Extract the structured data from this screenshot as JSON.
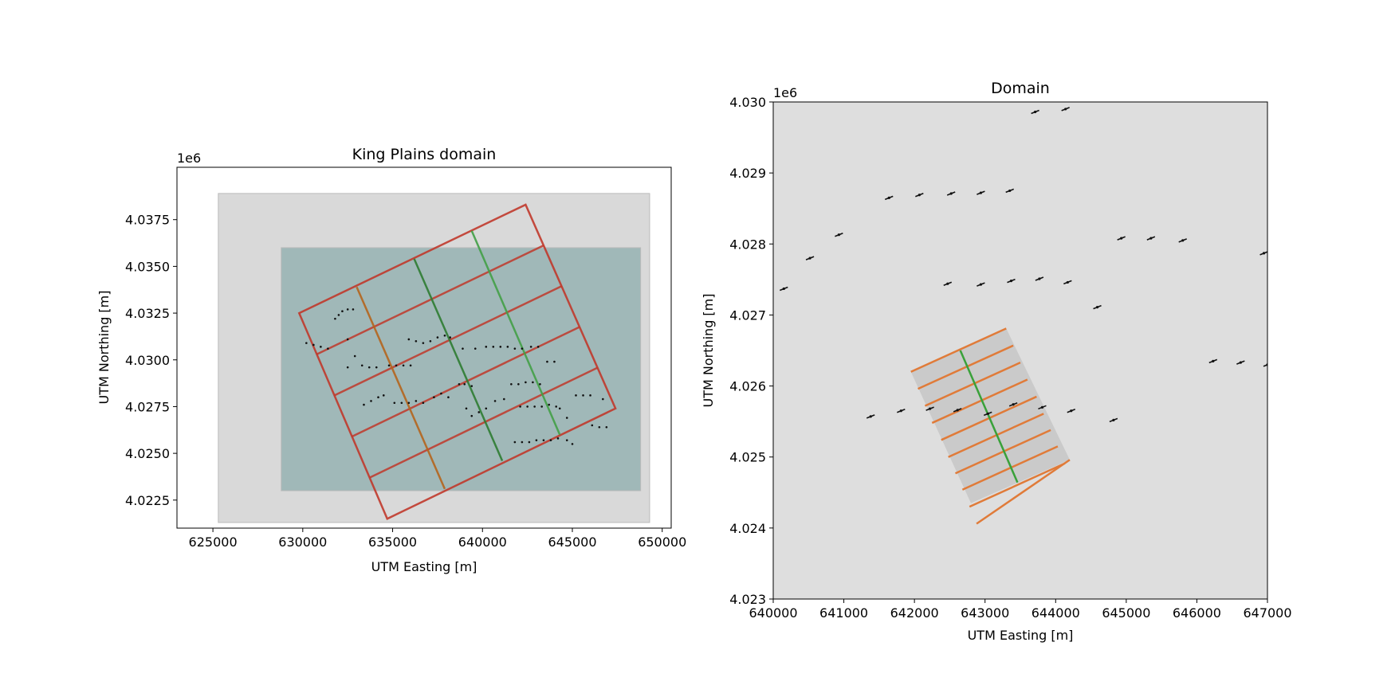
{
  "chart_data": [
    {
      "type": "scatter",
      "title": "King Plains domain",
      "xlabel": "UTM Easting [m]",
      "ylabel": "UTM Northing [m]",
      "offset_label": "1e6",
      "xlim": [
        623000,
        650500
      ],
      "ylim": [
        4021000,
        4040300
      ],
      "xticks": [
        625000,
        630000,
        635000,
        640000,
        645000,
        650000
      ],
      "xtick_labels": [
        "625000",
        "630000",
        "635000",
        "640000",
        "645000",
        "650000"
      ],
      "yticks": [
        4022500,
        4025000,
        4027500,
        4030000,
        4032500,
        4035000,
        4037500
      ],
      "ytick_labels": [
        "4.0225",
        "4.0250",
        "4.0275",
        "4.0300",
        "4.0325",
        "4.0350",
        "4.0375"
      ],
      "regions": [
        {
          "name": "outer-domain",
          "color": "#d9d9d9",
          "x": [
            625300,
            649300
          ],
          "y": [
            4021300,
            4038900
          ]
        },
        {
          "name": "inner-grid",
          "color": "#a0b8b8",
          "x": [
            628800,
            648800
          ],
          "y": [
            4023000,
            4036000
          ]
        }
      ],
      "turbines": [
        [
          631800,
          4032200
        ],
        [
          632000,
          4032400
        ],
        [
          632200,
          4032600
        ],
        [
          632500,
          4032700
        ],
        [
          632800,
          4032700
        ],
        [
          630200,
          4030900
        ],
        [
          630600,
          4030800
        ],
        [
          631000,
          4030700
        ],
        [
          631400,
          4030600
        ],
        [
          632500,
          4031100
        ],
        [
          632900,
          4030200
        ],
        [
          632500,
          4029600
        ],
        [
          633300,
          4029700
        ],
        [
          633700,
          4029600
        ],
        [
          634100,
          4029600
        ],
        [
          634800,
          4029700
        ],
        [
          635200,
          4029700
        ],
        [
          635600,
          4029700
        ],
        [
          636000,
          4029700
        ],
        [
          635900,
          4031100
        ],
        [
          636300,
          4031000
        ],
        [
          636700,
          4030900
        ],
        [
          637100,
          4031000
        ],
        [
          637500,
          4031200
        ],
        [
          637900,
          4031300
        ],
        [
          638200,
          4031200
        ],
        [
          638900,
          4030600
        ],
        [
          639600,
          4030600
        ],
        [
          640200,
          4030700
        ],
        [
          640600,
          4030700
        ],
        [
          641000,
          4030700
        ],
        [
          641400,
          4030700
        ],
        [
          641800,
          4030600
        ],
        [
          642200,
          4030600
        ],
        [
          642700,
          4030700
        ],
        [
          643100,
          4030700
        ],
        [
          643600,
          4029900
        ],
        [
          644000,
          4029900
        ],
        [
          638700,
          4028700
        ],
        [
          639000,
          4028700
        ],
        [
          639400,
          4028600
        ],
        [
          641600,
          4028700
        ],
        [
          642000,
          4028700
        ],
        [
          642400,
          4028800
        ],
        [
          642800,
          4028800
        ],
        [
          643200,
          4028700
        ],
        [
          633400,
          4027600
        ],
        [
          633800,
          4027800
        ],
        [
          634200,
          4028000
        ],
        [
          634500,
          4028100
        ],
        [
          635100,
          4027700
        ],
        [
          635500,
          4027700
        ],
        [
          635900,
          4027700
        ],
        [
          636300,
          4027800
        ],
        [
          636700,
          4027700
        ],
        [
          637300,
          4028000
        ],
        [
          637700,
          4028200
        ],
        [
          638100,
          4028000
        ],
        [
          639100,
          4027400
        ],
        [
          639400,
          4027000
        ],
        [
          639800,
          4027200
        ],
        [
          640200,
          4027400
        ],
        [
          640700,
          4027800
        ],
        [
          641200,
          4027900
        ],
        [
          642100,
          4027500
        ],
        [
          642500,
          4027500
        ],
        [
          642900,
          4027500
        ],
        [
          643300,
          4027500
        ],
        [
          643700,
          4027600
        ],
        [
          644100,
          4027500
        ],
        [
          644300,
          4027400
        ],
        [
          644700,
          4026900
        ],
        [
          645200,
          4028100
        ],
        [
          645600,
          4028100
        ],
        [
          646000,
          4028100
        ],
        [
          646700,
          4027900
        ],
        [
          646100,
          4026500
        ],
        [
          646500,
          4026400
        ],
        [
          646900,
          4026400
        ],
        [
          641800,
          4025600
        ],
        [
          642200,
          4025600
        ],
        [
          642600,
          4025600
        ],
        [
          643000,
          4025700
        ],
        [
          643400,
          4025700
        ],
        [
          643800,
          4025700
        ],
        [
          644200,
          4025800
        ],
        [
          644700,
          4025700
        ],
        [
          645000,
          4025500
        ]
      ],
      "nests": [
        {
          "color": "#c0392b",
          "corners": [
            [
              629800,
              4032500
            ],
            [
              642400,
              4038300
            ],
            [
              647400,
              4027400
            ],
            [
              634700,
              4021500
            ]
          ]
        },
        {
          "color": "#b5651d",
          "corners": [
            [
              633000,
              4033900
            ],
            [
              637900,
              4023100
            ]
          ]
        },
        {
          "color": "#2e7d32",
          "corners": [
            [
              636200,
              4035400
            ],
            [
              641100,
              4024600
            ]
          ]
        },
        {
          "color": "#43a047",
          "corners": [
            [
              639400,
              4036900
            ],
            [
              644300,
              4026000
            ]
          ]
        }
      ]
    },
    {
      "type": "scatter",
      "title": "Domain",
      "xlabel": "UTM Easting [m]",
      "ylabel": "UTM Northing [m]",
      "offset_label": "1e6",
      "xlim": [
        640000,
        647000
      ],
      "ylim": [
        4023000,
        4030000
      ],
      "xticks": [
        640000,
        641000,
        642000,
        643000,
        644000,
        645000,
        646000,
        647000
      ],
      "xtick_labels": [
        "640000",
        "641000",
        "642000",
        "643000",
        "644000",
        "645000",
        "646000",
        "647000"
      ],
      "yticks": [
        4023000,
        4024000,
        4025000,
        4026000,
        4027000,
        4028000,
        4029000,
        4030000
      ],
      "ytick_labels": [
        "4.023",
        "4.024",
        "4.025",
        "4.026",
        "4.027",
        "4.028",
        "4.029",
        "4.030"
      ],
      "background": "#dedede",
      "box": {
        "color": "#c8c8c8",
        "corners": [
          [
            641950,
            4026200
          ],
          [
            643300,
            4026810
          ],
          [
            644200,
            4024960
          ],
          [
            642800,
            4024350
          ]
        ]
      },
      "turbines": [
        [
          640150,
          4027370
        ],
        [
          640520,
          4027800
        ],
        [
          640930,
          4028130
        ],
        [
          641640,
          4028650
        ],
        [
          642070,
          4028690
        ],
        [
          642520,
          4028710
        ],
        [
          642940,
          4028720
        ],
        [
          643350,
          4028750
        ],
        [
          643710,
          4029860
        ],
        [
          644140,
          4029900
        ],
        [
          642470,
          4027440
        ],
        [
          642940,
          4027430
        ],
        [
          643370,
          4027480
        ],
        [
          643770,
          4027510
        ],
        [
          644170,
          4027460
        ],
        [
          644590,
          4027110
        ],
        [
          644930,
          4028080
        ],
        [
          645350,
          4028080
        ],
        [
          645800,
          4028050
        ],
        [
          646950,
          4027870
        ],
        [
          641380,
          4025570
        ],
        [
          641810,
          4025650
        ],
        [
          642220,
          4025680
        ],
        [
          642610,
          4025660
        ],
        [
          643040,
          4025610
        ],
        [
          643400,
          4025740
        ],
        [
          643810,
          4025700
        ],
        [
          644220,
          4025650
        ],
        [
          644820,
          4025520
        ],
        [
          646230,
          4026350
        ],
        [
          646620,
          4026330
        ],
        [
          647000,
          4026300
        ]
      ],
      "strands": {
        "color": "#e07b39",
        "lines": [
          [
            [
              641950,
              4026200
            ],
            [
              643300,
              4026810
            ]
          ],
          [
            [
              642050,
              4025960
            ],
            [
              643400,
              4026570
            ]
          ],
          [
            [
              642150,
              4025720
            ],
            [
              643500,
              4026330
            ]
          ],
          [
            [
              642250,
              4025480
            ],
            [
              643600,
              4026090
            ]
          ],
          [
            [
              642380,
              4025240
            ],
            [
              643730,
              4025850
            ]
          ],
          [
            [
              642480,
              4025000
            ],
            [
              643830,
              4025610
            ]
          ],
          [
            [
              642580,
              4024770
            ],
            [
              643930,
              4025380
            ]
          ],
          [
            [
              642680,
              4024540
            ],
            [
              644030,
              4025150
            ]
          ],
          [
            [
              642780,
              4024300
            ],
            [
              644130,
              4024910
            ]
          ],
          [
            [
              642880,
              4024060
            ],
            [
              644200,
              4024960
            ]
          ]
        ]
      },
      "centerline": {
        "color": "#3aa13a",
        "points": [
          [
            642650,
            4026500
          ],
          [
            643460,
            4024640
          ]
        ]
      }
    }
  ]
}
